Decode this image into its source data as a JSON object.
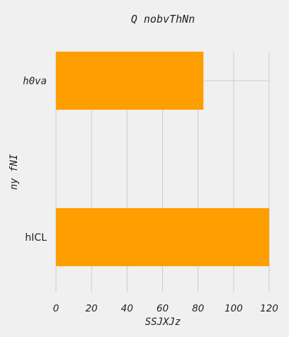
{
  "chart_data": {
    "type": "bar",
    "orientation": "horizontal",
    "title": "Q nobvThNn",
    "xlabel": "SSJXJz",
    "ylabel": "ny fNI",
    "categories": [
      "h0va",
      "hICL"
    ],
    "series": [
      {
        "values": [
          83,
          120
        ],
        "color": "#ff9e00"
      }
    ],
    "xlim": [
      0,
      120
    ],
    "xticks": [
      0,
      20,
      40,
      60,
      80,
      100,
      120
    ],
    "grid": true,
    "background": "#f0f0f0"
  }
}
